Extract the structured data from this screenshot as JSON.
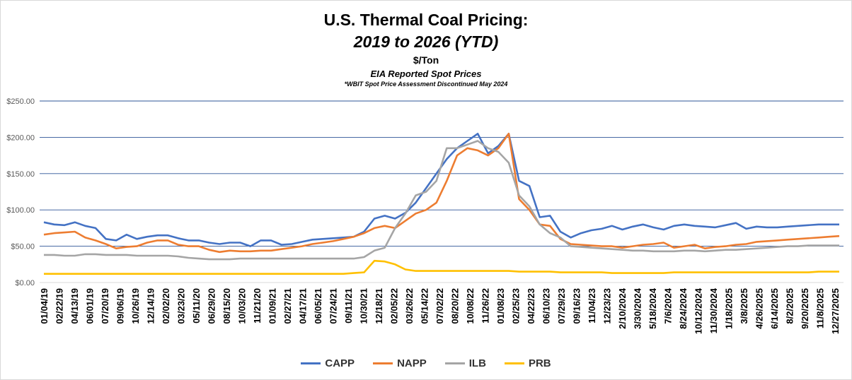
{
  "chart_data": {
    "type": "line",
    "title": "U.S. Thermal Coal Pricing:",
    "subtitle": "2019 to 2026 (YTD)",
    "unit_label": "$/Ton",
    "source_label": "EIA Reported Spot Prices",
    "footnote": "*WBIT Spot Price Assessment Discontinued May 2024",
    "xlabel": "",
    "ylabel": "",
    "ylim": [
      0,
      250
    ],
    "y_ticks": [
      "$0.00",
      "$50.00",
      "$100.00",
      "$150.00",
      "$200.00",
      "$250.00"
    ],
    "x_tick_labels": [
      "01/04/19",
      "02/22/19",
      "04/13/19",
      "06/01/19",
      "07/20/19",
      "09/06/19",
      "10/26/19",
      "12/14/19",
      "02/02/20",
      "03/23/20",
      "05/11/20",
      "06/29/20",
      "08/15/20",
      "10/03/20",
      "11/21/20",
      "01/09/21",
      "02/27/21",
      "04/17/21",
      "06/05/21",
      "07/24/21",
      "09/11/21",
      "10/30/21",
      "12/18/21",
      "02/05/22",
      "03/26/22",
      "05/14/22",
      "07/02/22",
      "08/20/22",
      "10/08/22",
      "11/26/22",
      "01/08/23",
      "02/25/23",
      "04/22/23",
      "06/10/23",
      "07/29/23",
      "09/16/23",
      "11/04/23",
      "12/23/23",
      "2/10/2024",
      "3/30/2024",
      "5/18/2024",
      "7/6/2024",
      "8/24/2024",
      "10/12/2024",
      "11/30/2024",
      "1/18/2025",
      "3/8/2025",
      "4/26/2025",
      "6/14/2025",
      "8/2/2025",
      "9/20/2025",
      "11/8/2025",
      "12/27/2025"
    ],
    "grid": true,
    "legend_position": "bottom",
    "series": [
      {
        "name": "CAPP",
        "color": "#4472C4",
        "values": [
          83,
          80,
          79,
          83,
          78,
          75,
          60,
          58,
          66,
          60,
          63,
          65,
          65,
          61,
          58,
          58,
          55,
          53,
          55,
          55,
          50,
          58,
          58,
          52,
          53,
          56,
          59,
          60,
          61,
          62,
          63,
          70,
          88,
          92,
          88,
          96,
          110,
          130,
          150,
          170,
          185,
          195,
          205,
          178,
          188,
          205,
          140,
          133,
          90,
          92,
          70,
          62,
          68,
          72,
          74,
          78,
          73,
          77,
          80,
          76,
          73,
          78,
          80,
          78,
          77,
          76,
          79,
          82,
          74,
          77,
          76,
          76,
          77,
          78,
          79,
          80,
          80,
          80
        ]
      },
      {
        "name": "NAPP",
        "color": "#ED7D31",
        "values": [
          66,
          68,
          69,
          70,
          62,
          58,
          53,
          47,
          49,
          50,
          55,
          58,
          58,
          52,
          50,
          50,
          45,
          42,
          44,
          43,
          43,
          44,
          44,
          46,
          48,
          50,
          53,
          55,
          57,
          60,
          63,
          68,
          75,
          78,
          75,
          85,
          95,
          100,
          110,
          140,
          175,
          185,
          182,
          175,
          185,
          205,
          115,
          100,
          80,
          78,
          60,
          53,
          52,
          51,
          50,
          50,
          48,
          50,
          52,
          53,
          55,
          48,
          50,
          52,
          47,
          49,
          50,
          52,
          53,
          56,
          57,
          58,
          59,
          60,
          61,
          62,
          63,
          64
        ]
      },
      {
        "name": "ILB",
        "color": "#A5A5A5",
        "values": [
          38,
          38,
          37,
          37,
          39,
          39,
          38,
          38,
          38,
          37,
          37,
          37,
          37,
          36,
          34,
          33,
          32,
          32,
          32,
          33,
          33,
          33,
          33,
          33,
          33,
          33,
          33,
          33,
          33,
          33,
          33,
          35,
          44,
          48,
          75,
          95,
          120,
          125,
          140,
          185,
          185,
          190,
          195,
          185,
          180,
          165,
          120,
          105,
          80,
          68,
          62,
          50,
          49,
          48,
          47,
          46,
          45,
          44,
          44,
          43,
          43,
          43,
          44,
          44,
          43,
          44,
          45,
          45,
          46,
          47,
          48,
          49,
          50,
          50,
          51,
          51,
          51,
          51
        ]
      },
      {
        "name": "PRB",
        "color": "#FFC000",
        "values": [
          12,
          12,
          12,
          12,
          12,
          12,
          12,
          12,
          12,
          12,
          12,
          12,
          12,
          12,
          12,
          12,
          12,
          12,
          12,
          12,
          12,
          12,
          12,
          12,
          12,
          12,
          12,
          12,
          12,
          12,
          13,
          14,
          30,
          29,
          25,
          18,
          16,
          16,
          16,
          16,
          16,
          16,
          16,
          16,
          16,
          16,
          15,
          15,
          15,
          15,
          14,
          14,
          14,
          14,
          14,
          13,
          13,
          13,
          13,
          13,
          13,
          14,
          14,
          14,
          14,
          14,
          14,
          14,
          14,
          14,
          14,
          14,
          14,
          14,
          14,
          15,
          15,
          15
        ]
      }
    ]
  }
}
